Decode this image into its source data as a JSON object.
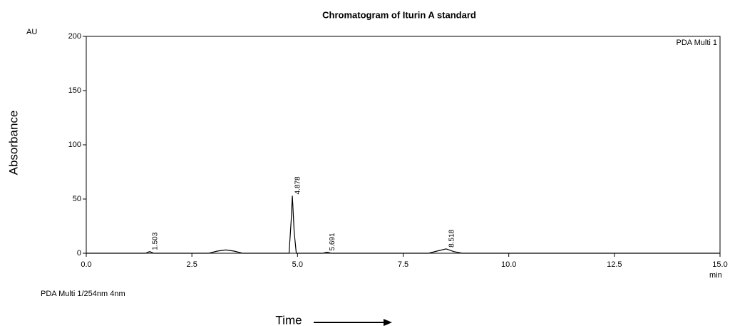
{
  "chart_data": {
    "type": "line",
    "title": "Chromatogram of Iturin A standard",
    "y_unit": "AU",
    "x_unit": "min",
    "ylabel": "Absorbance",
    "xlabel": "Time",
    "footnote": "PDA Multi 1/254nm 4nm",
    "x": [
      0,
      1.4,
      1.5,
      1.6,
      2.9,
      3.1,
      3.3,
      3.5,
      3.7,
      4.8,
      4.85,
      4.878,
      4.92,
      4.97,
      5.6,
      5.7,
      5.8,
      6.2,
      8.1,
      8.3,
      8.518,
      8.7,
      8.9,
      15
    ],
    "series": [
      {
        "name": "PDA Multi 1",
        "color": "#000000",
        "values": [
          0,
          0,
          1.5,
          0,
          0,
          2,
          3,
          2,
          0,
          0,
          30,
          53,
          20,
          0,
          0,
          1,
          0,
          0,
          0,
          2,
          4,
          1.5,
          0,
          0
        ]
      }
    ],
    "peak_labels": [
      1.503,
      4.878,
      5.691,
      8.518
    ],
    "xlim": [
      0,
      15
    ],
    "ylim": [
      0,
      200
    ],
    "xticks": [
      {
        "value": 0,
        "label": "0.0"
      },
      {
        "value": 2.5,
        "label": "2.5"
      },
      {
        "value": 5,
        "label": "5.0"
      },
      {
        "value": 7.5,
        "label": "7.5"
      },
      {
        "value": 10,
        "label": "10.0"
      },
      {
        "value": 12.5,
        "label": "12.5"
      },
      {
        "value": 15,
        "label": "15.0"
      }
    ],
    "yticks": [
      0,
      50,
      100,
      150,
      200
    ]
  }
}
